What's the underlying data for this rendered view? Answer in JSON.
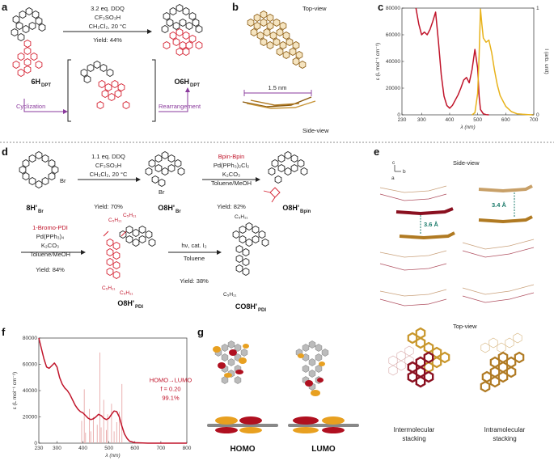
{
  "panels": {
    "a": "a",
    "b": "b",
    "c": "c",
    "d": "d",
    "e": "e",
    "f": "f",
    "g": "g"
  },
  "panel_a": {
    "reagent1": "3.2 eq. DDQ",
    "reagent2": "CF₃SO₃H",
    "reagent3": "CH₂Cl₂, 20 °C",
    "yield": "Yield: 44%",
    "start_label": "6H",
    "start_sub": "DPT",
    "product_label": "O6H",
    "product_sub": "DPT",
    "step1": "Cyclization",
    "step2": "Rearrangement"
  },
  "panel_b": {
    "top": "Top-view",
    "scale": "1.5 nm",
    "side": "Side-view"
  },
  "panel_d": {
    "r1_1": "1.1 eq. DDQ",
    "r1_2": "CF₃SO₃H",
    "r1_3": "CH₂Cl₂, 20 °C",
    "y1": "Yield: 70%",
    "r2_1": "Bpin-Bpin",
    "r2_2": "Pd(PPh₃)₂Cl₂",
    "r2_3": "K₂CO₃",
    "r2_4": "Toluene/MeOH",
    "y2": "Yield: 82%",
    "m1": "8H'",
    "m1s": "Br",
    "m2": "O8H'",
    "m2s": "Br",
    "m3": "O8H'",
    "m3s": "Bpin",
    "r3_1": "1-Bromo-PDI",
    "r3_2": "Pd(PPh₃)₄",
    "r3_3": "K₂CO₃",
    "r3_4": "Toluene/MeOH",
    "y3": "Yield: 84%",
    "r4_1": "hν, cat. I₂",
    "r4_2": "Toluene",
    "y4": "Yield: 38%",
    "m4": "O8H'",
    "m4s": "PDI",
    "m5": "CO8H'",
    "m5s": "PDI",
    "br": "Br",
    "alkyl": "C₅H₁₁"
  },
  "panel_e": {
    "side": "Side-view",
    "d1": "3.4 Å",
    "d2": "3.6 Å",
    "top": "Top-view",
    "inter": "Intermolecular",
    "inter2": "stacking",
    "intra": "Intramolecular",
    "intra2": "stacking",
    "axis_c": "c",
    "axis_b": "b",
    "axis_a": "a"
  },
  "panel_g": {
    "homo": "HOMO",
    "lumo": "LUMO"
  },
  "colors": {
    "red": "#c0142a",
    "gold": "#e8b21a",
    "brown": "#a8761c",
    "purple": "#8a3a9c",
    "teal": "#1a7a6a"
  },
  "chart_data": [
    {
      "id": "c",
      "type": "line",
      "xlabel": "λ (nm)",
      "ylabel": "ε (L mol⁻¹ cm⁻¹)",
      "y2label": "I (arb. unit)",
      "xlim": [
        230,
        700
      ],
      "ylim": [
        0,
        80000
      ],
      "y2lim": [
        0,
        1
      ],
      "xticks": [
        230,
        300,
        400,
        500,
        600,
        700
      ],
      "yticks": [
        0,
        20000,
        40000,
        60000,
        80000
      ],
      "y2ticks": [
        0,
        1
      ],
      "series": [
        {
          "kind": "absorption",
          "color": "#c0142a",
          "x": [
            280,
            290,
            300,
            310,
            320,
            330,
            340,
            350,
            360,
            370,
            380,
            390,
            400,
            410,
            420,
            430,
            440,
            450,
            460,
            470,
            480,
            490,
            500,
            505,
            510,
            520,
            530,
            540
          ],
          "y": [
            80000,
            68000,
            60000,
            62000,
            60000,
            64000,
            70000,
            77000,
            55000,
            30000,
            14000,
            7000,
            5000,
            7000,
            11000,
            15000,
            20000,
            26000,
            28000,
            24000,
            34000,
            49000,
            35000,
            14000,
            4000,
            800,
            200,
            0
          ]
        },
        {
          "kind": "emission",
          "color": "#e8b21a",
          "x": [
            480,
            490,
            500,
            505,
            510,
            515,
            520,
            530,
            540,
            550,
            560,
            570,
            580,
            600,
            620,
            640,
            660,
            680,
            700
          ],
          "y": [
            0,
            0.02,
            0.2,
            0.55,
            0.99,
            0.85,
            0.72,
            0.68,
            0.7,
            0.58,
            0.42,
            0.28,
            0.18,
            0.08,
            0.03,
            0.01,
            0.005,
            0.002,
            0
          ]
        }
      ]
    },
    {
      "id": "f",
      "type": "line",
      "xlabel": "λ (nm)",
      "ylabel": "ε (L mol⁻¹ cm⁻¹)",
      "xlim": [
        230,
        800
      ],
      "ylim": [
        0,
        80000
      ],
      "xticks": [
        230,
        300,
        400,
        500,
        600,
        700,
        800
      ],
      "yticks": [
        0,
        20000,
        40000,
        60000,
        80000
      ],
      "annotation": [
        "HOMO→LUMO",
        "f = 0.20",
        "99.1%"
      ],
      "series": [
        {
          "kind": "absorption",
          "color": "#c0142a",
          "x": [
            230,
            240,
            250,
            260,
            270,
            280,
            290,
            300,
            310,
            320,
            330,
            340,
            350,
            360,
            370,
            380,
            390,
            400,
            410,
            420,
            430,
            440,
            450,
            460,
            470,
            480,
            490,
            500,
            510,
            520,
            530,
            540,
            550,
            560,
            570,
            580,
            600,
            650,
            700,
            800
          ],
          "y": [
            80000,
            72000,
            64000,
            58000,
            57000,
            59000,
            61000,
            58000,
            50000,
            45000,
            42000,
            40000,
            37000,
            33000,
            29000,
            26000,
            24000,
            23000,
            21000,
            19000,
            18000,
            18500,
            20000,
            22000,
            21000,
            19000,
            18000,
            19000,
            22000,
            24500,
            24000,
            20000,
            13000,
            7000,
            3500,
            1500,
            400,
            0,
            0,
            0
          ]
        }
      ],
      "sticks": {
        "x": [
          395,
          405,
          410,
          425,
          430,
          440,
          455,
          465,
          470,
          480,
          490,
          495,
          510,
          520,
          530,
          540,
          550
        ],
        "y": [
          17000,
          41000,
          8000,
          26000,
          9000,
          20000,
          14000,
          69000,
          12000,
          33000,
          10000,
          22000,
          30000,
          9000,
          16000,
          24000,
          45000
        ]
      }
    }
  ]
}
